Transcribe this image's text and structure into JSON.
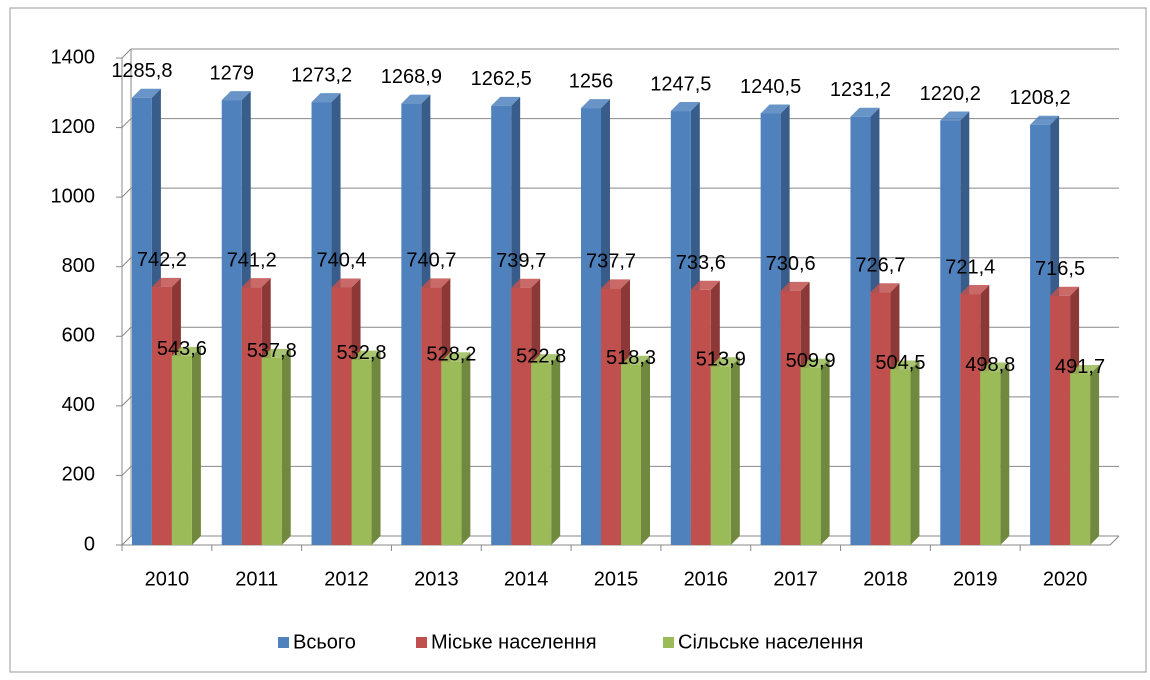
{
  "chart_data": {
    "type": "bar3d",
    "categories": [
      "2010",
      "2011",
      "2012",
      "2013",
      "2014",
      "2015",
      "2016",
      "2017",
      "2018",
      "2019",
      "2020"
    ],
    "series": [
      {
        "name": "Всього",
        "color": "#4f81bd",
        "side": "#385d8a",
        "values": [
          1285.8,
          1279,
          1273.2,
          1268.9,
          1262.5,
          1256,
          1247.5,
          1240.5,
          1231.2,
          1220.2,
          1208.2
        ],
        "value_labels": [
          "1285,8",
          "1279",
          "1273,2",
          "1268,9",
          "1262,5",
          "1256",
          "1247,5",
          "1240,5",
          "1231,2",
          "1220,2",
          "1208,2"
        ]
      },
      {
        "name": "Міське населення",
        "color": "#c0504d",
        "side": "#8c3836",
        "values": [
          742.2,
          741.2,
          740.4,
          740.7,
          739.7,
          737.7,
          733.6,
          730.6,
          726.7,
          721.4,
          716.5
        ],
        "value_labels": [
          "742,2",
          "741,2",
          "740,4",
          "740,7",
          "739,7",
          "737,7",
          "733,6",
          "730,6",
          "726,7",
          "721,4",
          "716,5"
        ]
      },
      {
        "name": "Сільське населення",
        "color": "#9bbb59",
        "side": "#71893f",
        "values": [
          543.6,
          537.8,
          532.8,
          528.2,
          522.8,
          518.3,
          513.9,
          509.9,
          504.5,
          498.8,
          491.7
        ],
        "value_labels": [
          "543,6",
          "537,8",
          "532,8",
          "528,2",
          "522,8",
          "518,3",
          "513,9",
          "509,9",
          "504,5",
          "498,8",
          "491,7"
        ]
      }
    ],
    "ylim": [
      0,
      1400
    ],
    "yticks": [
      0,
      200,
      400,
      600,
      800,
      1000,
      1200,
      1400
    ],
    "grid": true,
    "legend": "bottom"
  }
}
